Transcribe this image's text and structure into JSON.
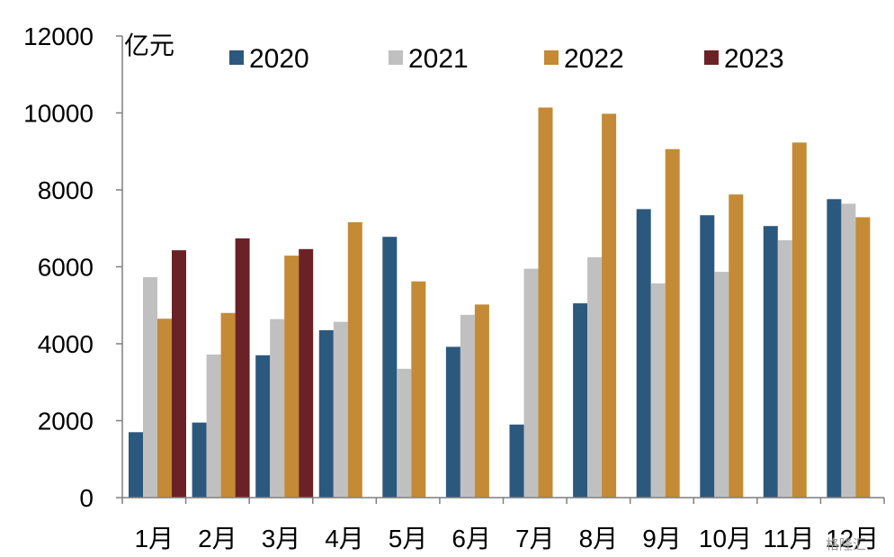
{
  "colors": {
    "2020": "#2b587d",
    "2021": "#c0c0c0",
    "2022": "#c48a35",
    "2023": "#6b2226",
    "axis": "#7f7f7f"
  },
  "chart_data": {
    "type": "bar",
    "unit_label": "亿元",
    "categories": [
      "1月",
      "2月",
      "3月",
      "4月",
      "5月",
      "6月",
      "7月",
      "8月",
      "9月",
      "10月",
      "11月",
      "12月"
    ],
    "series": [
      {
        "name": "2020",
        "values": [
          1700,
          1950,
          3700,
          4350,
          6780,
          3920,
          1900,
          5050,
          7500,
          7340,
          7060,
          7760
        ]
      },
      {
        "name": "2021",
        "values": [
          5730,
          3720,
          4640,
          4570,
          3350,
          4750,
          5950,
          6250,
          5570,
          5870,
          6690,
          7640
        ]
      },
      {
        "name": "2022",
        "values": [
          4650,
          4800,
          6290,
          7160,
          5620,
          5020,
          10140,
          9980,
          9060,
          7880,
          9230,
          7290
        ]
      },
      {
        "name": "2023",
        "values": [
          6430,
          6740,
          6460,
          null,
          null,
          null,
          null,
          null,
          null,
          null,
          null,
          null
        ]
      }
    ],
    "ylim": [
      0,
      12000
    ],
    "yticks": [
      "0",
      "2000",
      "4000",
      "6000",
      "8000",
      "10000",
      "12000"
    ],
    "grid": false,
    "legend_position": "top"
  },
  "watermark": "格隆汇"
}
